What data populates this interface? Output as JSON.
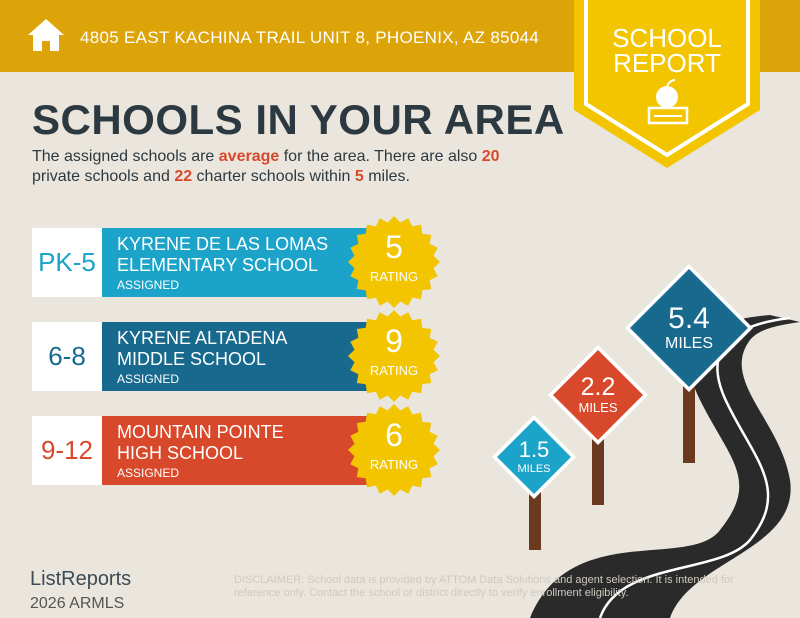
{
  "header": {
    "address": "4805 EAST KACHINA TRAIL UNIT 8, PHOENIX, AZ 85044",
    "badge_line1": "SCHOOL",
    "badge_line2": "REPORT"
  },
  "title": "SCHOOLS IN YOUR AREA",
  "intro": {
    "p1": "The assigned schools are ",
    "quality": "average",
    "p2": " for the area. There are also ",
    "private_count": "20",
    "p3": " private schools and ",
    "charter_count": "22",
    "p4": " charter schools within ",
    "miles": "5",
    "p5": " miles."
  },
  "schools": [
    {
      "grade": "PK-5",
      "name1": "KYRENE DE LAS LOMAS",
      "name2": "ELEMENTARY SCHOOL",
      "status": "ASSIGNED",
      "rating": "5",
      "rating_label": "RATING",
      "color": "#1ba3c9"
    },
    {
      "grade": "6-8",
      "name1": "KYRENE ALTADENA",
      "name2": "MIDDLE SCHOOL",
      "status": "ASSIGNED",
      "rating": "9",
      "rating_label": "RATING",
      "color": "#176a8e"
    },
    {
      "grade": "9-12",
      "name1": "MOUNTAIN POINTE",
      "name2": "HIGH SCHOOL",
      "status": "ASSIGNED",
      "rating": "6",
      "rating_label": "RATING",
      "color": "#d8482b"
    }
  ],
  "signs": [
    {
      "value": "1.5",
      "unit": "MILES",
      "color": "#1ba3c9"
    },
    {
      "value": "2.2",
      "unit": "MILES",
      "color": "#d8482b"
    },
    {
      "value": "5.4",
      "unit": "MILES",
      "color": "#176a8e"
    }
  ],
  "footer": {
    "logo": "ListReports",
    "copyright": "2026 ARMLS",
    "disclaimer_label": "DISCLAIMER:",
    "disclaimer": " School data is provided by ATTOM Data Solutions and agent selection. It is intended for reference only. Contact the school or district directly to verify enrollment eligibility."
  }
}
